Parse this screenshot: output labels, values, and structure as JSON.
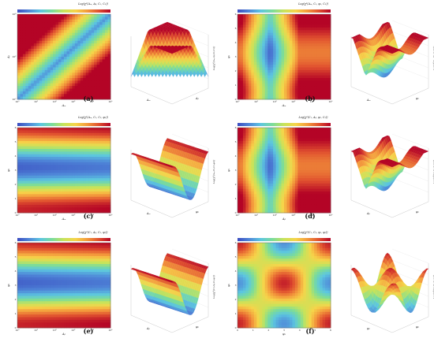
{
  "panels": [
    {
      "id": "a",
      "label": "(a)",
      "colorbar_title": "Log(χ²(Aₘ, Aᵦ, C₁, C₂))",
      "heatmap": {
        "type": "heatmap",
        "xlabel": "Aₘ",
        "ylabel": "Aᵦ",
        "x_scale": "log",
        "y_scale": "log",
        "x_ticks": [
          "10⁰",
          "10¹",
          "10²",
          "10³",
          "10⁴",
          "10⁵"
        ],
        "y_ticks": [
          "10⁰",
          "10²",
          "10⁴"
        ],
        "pattern": "diagonal-valley"
      },
      "surface": {
        "xlabel": "Aₘ",
        "ylabel": "Aᵦ",
        "zlabel": "Log(χ²(Aₘ,Aᵦ,C₁,C₂))"
      }
    },
    {
      "id": "b",
      "label": "(b)",
      "colorbar_title": "Log(χ²(Aₘ, C₁, φ₁, C₂))",
      "heatmap": {
        "type": "heatmap",
        "xlabel": "Aₘ",
        "ylabel": "φ₁",
        "x_scale": "log",
        "x_ticks": [
          "10⁰",
          "10¹",
          "10²",
          "10³",
          "10⁴",
          "10⁵"
        ],
        "y_ticks": [
          "0",
          "1",
          "2",
          "3",
          "4",
          "5",
          "6"
        ],
        "pattern": "vertical-valley"
      },
      "surface": {
        "xlabel": "Aₘ",
        "ylabel": "φ₁",
        "zlabel": "Log(χ²(Aₘ,C₁,φ₁,C₂))"
      }
    },
    {
      "id": "c",
      "label": "(c)",
      "colorbar_title": "Log(χ²(Aₘ, C₁, C₂, φ₂))",
      "heatmap": {
        "type": "heatmap",
        "xlabel": "Aₘ",
        "ylabel": "φ₂",
        "x_scale": "log",
        "x_ticks": [
          "10⁰",
          "10¹",
          "10²",
          "10³",
          "10⁴",
          "10⁵"
        ],
        "y_ticks": [
          "0",
          "1",
          "2",
          "3",
          "4",
          "5",
          "6"
        ],
        "pattern": "horizontal-bands"
      },
      "surface": {
        "xlabel": "Aₘ",
        "ylabel": "φ₂",
        "zlabel": "Log(χ²(Aₘ,C₁,C₂,φ₂))"
      }
    },
    {
      "id": "d",
      "label": "(d)",
      "colorbar_title": "Log(χ²(C₁, Aᵦ, φ₁, C₂))",
      "heatmap": {
        "type": "heatmap",
        "xlabel": "Aᵦ",
        "ylabel": "φ₁",
        "x_scale": "log",
        "x_ticks": [
          "10⁰",
          "10¹",
          "10²",
          "10³",
          "10⁴",
          "10⁵"
        ],
        "y_ticks": [
          "0",
          "1",
          "2",
          "3",
          "4",
          "5",
          "6"
        ],
        "pattern": "vertical-valley"
      },
      "surface": {
        "xlabel": "Aᵦ",
        "ylabel": "φ₁",
        "zlabel": "Log(χ²(C₁,Aᵦ,φ₁,C₂))"
      }
    },
    {
      "id": "e",
      "label": "(e)",
      "colorbar_title": "Log(χ²(C₁, Aᵦ, C₂, φ₂))",
      "heatmap": {
        "type": "heatmap",
        "xlabel": "Aᵦ",
        "ylabel": "φ₂",
        "x_scale": "log",
        "x_ticks": [
          "10⁰",
          "10¹",
          "10²",
          "10³",
          "10⁴",
          "10⁵"
        ],
        "y_ticks": [
          "0",
          "1",
          "2",
          "3",
          "4",
          "5",
          "6"
        ],
        "pattern": "horizontal-bands"
      },
      "surface": {
        "xlabel": "Aᵦ",
        "ylabel": "φ₂",
        "zlabel": "Log(χ²(C₁,Aᵦ,C₂,φ₂))"
      }
    },
    {
      "id": "f",
      "label": "(f)",
      "colorbar_title": "Log(χ²(C₁, C₂, φ₁, φ₂))",
      "heatmap": {
        "type": "heatmap",
        "xlabel": "φ₁",
        "ylabel": "φ₂",
        "x_ticks": [
          "0",
          "1",
          "2",
          "3",
          "4",
          "5",
          "6"
        ],
        "y_ticks": [
          "0",
          "1",
          "2",
          "3",
          "4",
          "5",
          "6"
        ],
        "pattern": "checker"
      },
      "surface": {
        "xlabel": "φ₁",
        "ylabel": "φ₂",
        "zlabel": "Log(χ²(C₁,C₂,φ₁,φ₂))"
      }
    }
  ],
  "colorscale": [
    "#3b4cc0",
    "#4f86d8",
    "#5cc6e0",
    "#7bdc9a",
    "#c8e35a",
    "#f6d44a",
    "#f39a3c",
    "#e0502f",
    "#b40426"
  ]
}
